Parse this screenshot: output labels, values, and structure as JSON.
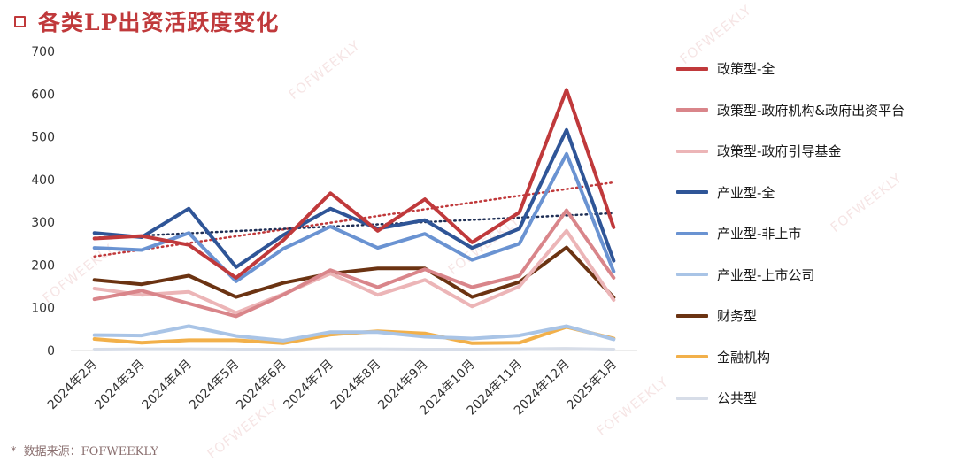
{
  "page": {
    "title": "各类LP出资活跃度变化",
    "footnote_star": "*",
    "footnote": "数据来源：FOFWEEKLY",
    "watermark": "FOFWEEKLY"
  },
  "chart_data": {
    "type": "line",
    "title": "各类LP出资活跃度变化",
    "xlabel": "",
    "ylabel": "",
    "ylim": [
      0,
      700
    ],
    "yticks": [
      0,
      100,
      200,
      300,
      400,
      500,
      600,
      700
    ],
    "grid": false,
    "legend_position": "right",
    "categories": [
      "2024年2月",
      "2024年3月",
      "2024年4月",
      "2024年5月",
      "2024年6月",
      "2024年7月",
      "2024年8月",
      "2024年9月",
      "2024年10月",
      "2024年11月",
      "2024年12月",
      "2025年1月"
    ],
    "series": [
      {
        "name": "政策型-全",
        "color": "#c0393b",
        "values": [
          262,
          268,
          247,
          170,
          258,
          368,
          280,
          354,
          253,
          323,
          610,
          288
        ]
      },
      {
        "name": "政策型-政府机构&政府出资平台",
        "color": "#d9858a",
        "values": [
          120,
          140,
          110,
          80,
          130,
          188,
          148,
          190,
          148,
          175,
          328,
          170
        ]
      },
      {
        "name": "政策型-政府引导基金",
        "color": "#ecb5b7",
        "values": [
          145,
          130,
          137,
          88,
          132,
          180,
          130,
          165,
          103,
          150,
          280,
          118
        ]
      },
      {
        "name": "产业型-全",
        "color": "#2f5597",
        "values": [
          275,
          265,
          332,
          195,
          270,
          332,
          285,
          305,
          240,
          285,
          516,
          210
        ]
      },
      {
        "name": "产业型-非上市",
        "color": "#6a93d2",
        "values": [
          240,
          235,
          275,
          162,
          238,
          290,
          240,
          273,
          212,
          250,
          460,
          185
        ]
      },
      {
        "name": "产业型-上市公司",
        "color": "#a9c4e6",
        "values": [
          36,
          35,
          57,
          34,
          23,
          43,
          43,
          32,
          28,
          35,
          57,
          26
        ]
      },
      {
        "name": "财务型",
        "color": "#6b3312",
        "values": [
          165,
          155,
          175,
          125,
          158,
          180,
          192,
          192,
          125,
          160,
          241,
          124
        ]
      },
      {
        "name": "金融机构",
        "color": "#f2b04a",
        "values": [
          27,
          18,
          24,
          24,
          17,
          37,
          45,
          40,
          17,
          18,
          55,
          28
        ]
      },
      {
        "name": "公共型",
        "color": "#d7dde8",
        "values": [
          2,
          3,
          3,
          2,
          2,
          3,
          3,
          2,
          2,
          3,
          4,
          2
        ]
      }
    ],
    "trendlines": [
      {
        "series": "政策型-全",
        "color": "#c0393b",
        "style": "dotted"
      },
      {
        "series": "产业型-全",
        "color": "#1f2f55",
        "style": "dotted"
      }
    ]
  }
}
